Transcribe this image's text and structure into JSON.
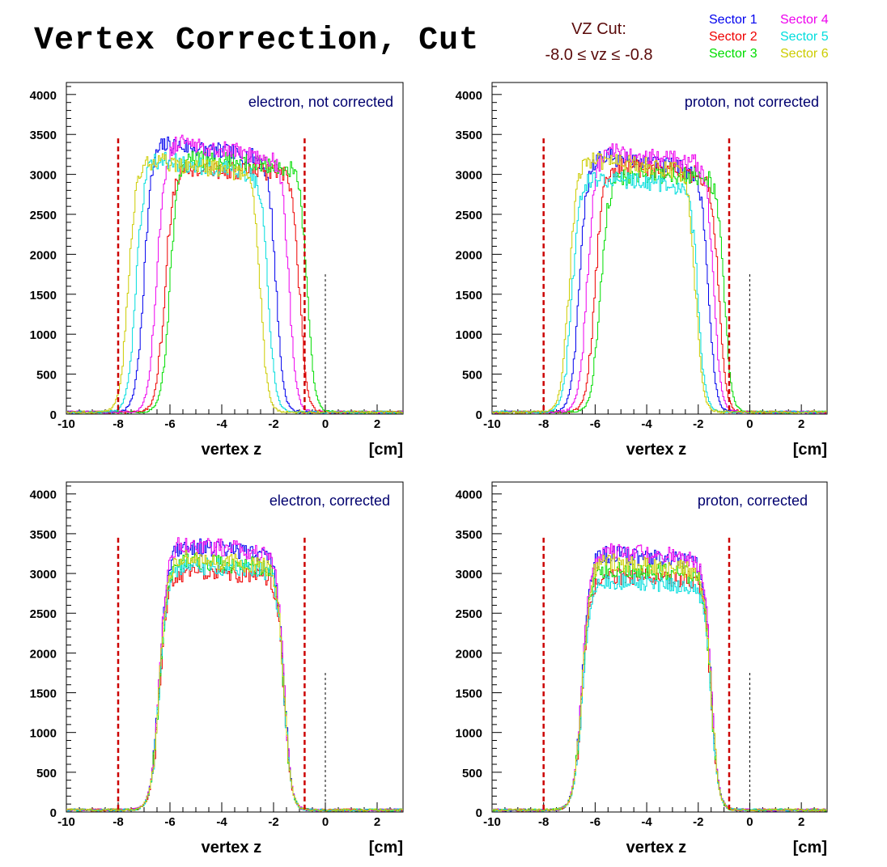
{
  "title": "Vertex Correction, Cut",
  "cut": {
    "line1": "VZ Cut:",
    "line2": "-8.0 ≤ vz ≤ -0.8",
    "low": -8.0,
    "high": -0.8,
    "color": "#cc0000"
  },
  "legend": [
    {
      "label": "Sector 1",
      "color": "#0000ee"
    },
    {
      "label": "Sector 2",
      "color": "#ee0000"
    },
    {
      "label": "Sector 3",
      "color": "#00dd00"
    },
    {
      "label": "Sector 4",
      "color": "#ee00ee"
    },
    {
      "label": "Sector 5",
      "color": "#00dddd"
    },
    {
      "label": "Sector 6",
      "color": "#cccc00"
    }
  ],
  "chart_data": [
    {
      "type": "line",
      "panel_label": "electron, not corrected",
      "xlabel": "vertex z",
      "xunit": "[cm]",
      "xlim": [
        -10,
        3
      ],
      "ylim": [
        0,
        4150
      ],
      "xticks": [
        -10,
        -8,
        -6,
        -4,
        -2,
        0,
        2
      ],
      "yticks": [
        0,
        500,
        1000,
        1500,
        2000,
        2500,
        3000,
        3500,
        4000
      ],
      "reference_line": {
        "x": 0,
        "y": 1750
      },
      "series": [
        {
          "name": "Sector 1",
          "rise": -7.0,
          "fall": -1.9,
          "plateau": [
            3400,
            3150
          ]
        },
        {
          "name": "Sector 2",
          "rise": -6.2,
          "fall": -1.0,
          "plateau": [
            3050,
            3000
          ]
        },
        {
          "name": "Sector 3",
          "rise": -6.0,
          "fall": -0.7,
          "plateau": [
            3200,
            3050
          ]
        },
        {
          "name": "Sector 4",
          "rise": -6.5,
          "fall": -1.4,
          "plateau": [
            3420,
            3150
          ]
        },
        {
          "name": "Sector 5",
          "rise": -7.3,
          "fall": -2.2,
          "plateau": [
            3200,
            2950
          ]
        },
        {
          "name": "Sector 6",
          "rise": -7.6,
          "fall": -2.5,
          "plateau": [
            3180,
            2980
          ]
        }
      ]
    },
    {
      "type": "line",
      "panel_label": "proton, not corrected",
      "xlabel": "vertex z",
      "xunit": "[cm]",
      "xlim": [
        -10,
        3
      ],
      "ylim": [
        0,
        4150
      ],
      "xticks": [
        -10,
        -8,
        -6,
        -4,
        -2,
        0,
        2
      ],
      "yticks": [
        0,
        500,
        1000,
        1500,
        2000,
        2500,
        3000,
        3500,
        4000
      ],
      "reference_line": {
        "x": 0,
        "y": 1750
      },
      "series": [
        {
          "name": "Sector 1",
          "rise": -6.6,
          "fall": -1.6,
          "plateau": [
            3250,
            3000
          ]
        },
        {
          "name": "Sector 2",
          "rise": -6.0,
          "fall": -1.2,
          "plateau": [
            3100,
            2950
          ]
        },
        {
          "name": "Sector 3",
          "rise": -5.8,
          "fall": -1.0,
          "plateau": [
            2950,
            2950
          ]
        },
        {
          "name": "Sector 4",
          "rise": -6.3,
          "fall": -1.4,
          "plateau": [
            3300,
            3100
          ]
        },
        {
          "name": "Sector 5",
          "rise": -6.9,
          "fall": -2.0,
          "plateau": [
            2950,
            2800
          ]
        },
        {
          "name": "Sector 6",
          "rise": -7.0,
          "fall": -2.1,
          "plateau": [
            3200,
            3000
          ]
        }
      ]
    },
    {
      "type": "line",
      "panel_label": "electron, corrected",
      "xlabel": "vertex z",
      "xunit": "[cm]",
      "xlim": [
        -10,
        3
      ],
      "ylim": [
        0,
        4150
      ],
      "xticks": [
        -10,
        -8,
        -6,
        -4,
        -2,
        0,
        2
      ],
      "yticks": [
        0,
        500,
        1000,
        1500,
        2000,
        2500,
        3000,
        3500,
        4000
      ],
      "reference_line": {
        "x": 0,
        "y": 1750
      },
      "series": [
        {
          "name": "Sector 1",
          "rise": -6.4,
          "fall": -1.6,
          "plateau": [
            3350,
            3200
          ]
        },
        {
          "name": "Sector 2",
          "rise": -6.4,
          "fall": -1.6,
          "plateau": [
            3000,
            2950
          ]
        },
        {
          "name": "Sector 3",
          "rise": -6.4,
          "fall": -1.6,
          "plateau": [
            3150,
            3050
          ]
        },
        {
          "name": "Sector 4",
          "rise": -6.4,
          "fall": -1.6,
          "plateau": [
            3400,
            3200
          ]
        },
        {
          "name": "Sector 5",
          "rise": -6.4,
          "fall": -1.6,
          "plateau": [
            3100,
            3000
          ]
        },
        {
          "name": "Sector 6",
          "rise": -6.4,
          "fall": -1.6,
          "plateau": [
            3200,
            3050
          ]
        }
      ]
    },
    {
      "type": "line",
      "panel_label": "proton, corrected",
      "xlabel": "vertex z",
      "xunit": "[cm]",
      "xlim": [
        -10,
        3
      ],
      "ylim": [
        0,
        4150
      ],
      "xticks": [
        -10,
        -8,
        -6,
        -4,
        -2,
        0,
        2
      ],
      "yticks": [
        0,
        500,
        1000,
        1500,
        2000,
        2500,
        3000,
        3500,
        4000
      ],
      "reference_line": {
        "x": 0,
        "y": 1750
      },
      "series": [
        {
          "name": "Sector 1",
          "rise": -6.5,
          "fall": -1.5,
          "plateau": [
            3250,
            3100
          ]
        },
        {
          "name": "Sector 2",
          "rise": -6.5,
          "fall": -1.5,
          "plateau": [
            2950,
            2900
          ]
        },
        {
          "name": "Sector 3",
          "rise": -6.5,
          "fall": -1.5,
          "plateau": [
            3050,
            2950
          ]
        },
        {
          "name": "Sector 4",
          "rise": -6.5,
          "fall": -1.5,
          "plateau": [
            3300,
            3150
          ]
        },
        {
          "name": "Sector 5",
          "rise": -6.5,
          "fall": -1.5,
          "plateau": [
            2900,
            2800
          ]
        },
        {
          "name": "Sector 6",
          "rise": -6.5,
          "fall": -1.5,
          "plateau": [
            3150,
            3000
          ]
        }
      ]
    }
  ]
}
